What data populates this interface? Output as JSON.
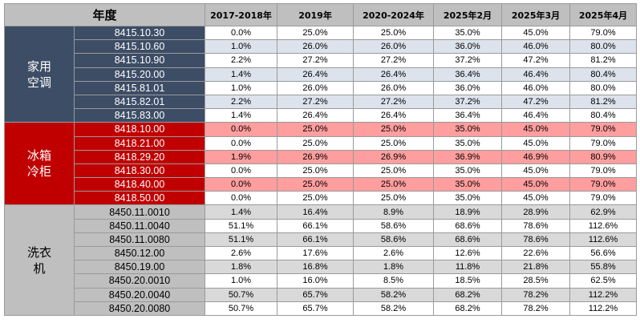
{
  "header": {
    "label": "年度",
    "columns": [
      "2017-2018年",
      "2019年",
      "2020-2024年",
      "2025年2月",
      "2025年3月",
      "2025年4月"
    ]
  },
  "groups": [
    {
      "label": "家用空调",
      "rows": [
        {
          "code": "8415.10.30",
          "values": [
            "0.0%",
            "25.0%",
            "25.0%",
            "35.0%",
            "45.0%",
            "79.0%"
          ]
        },
        {
          "code": "8415.10.60",
          "values": [
            "1.0%",
            "26.0%",
            "26.0%",
            "36.0%",
            "46.0%",
            "80.0%"
          ]
        },
        {
          "code": "8415.10.90",
          "values": [
            "2.2%",
            "27.2%",
            "27.2%",
            "37.2%",
            "47.2%",
            "81.2%"
          ]
        },
        {
          "code": "8415.20.00",
          "values": [
            "1.4%",
            "26.4%",
            "26.4%",
            "36.4%",
            "46.4%",
            "80.4%"
          ]
        },
        {
          "code": "8415.81.01",
          "values": [
            "1.0%",
            "26.0%",
            "26.0%",
            "36.0%",
            "46.0%",
            "80.0%"
          ]
        },
        {
          "code": "8415.82.01",
          "values": [
            "2.2%",
            "27.2%",
            "27.2%",
            "37.2%",
            "47.2%",
            "81.2%"
          ]
        },
        {
          "code": "8415.83.00",
          "values": [
            "1.4%",
            "26.4%",
            "26.4%",
            "36.4%",
            "46.4%",
            "80.4%"
          ]
        }
      ]
    },
    {
      "label": "冰箱冷柜",
      "rows": [
        {
          "code": "8418.10.00",
          "values": [
            "0.0%",
            "25.0%",
            "25.0%",
            "35.0%",
            "45.0%",
            "79.0%"
          ]
        },
        {
          "code": "8418.21.00",
          "values": [
            "0.0%",
            "25.0%",
            "25.0%",
            "35.0%",
            "45.0%",
            "79.0%"
          ]
        },
        {
          "code": "8418.29.20",
          "values": [
            "1.9%",
            "26.9%",
            "26.9%",
            "36.9%",
            "46.9%",
            "80.9%"
          ]
        },
        {
          "code": "8418.30.00",
          "values": [
            "0.0%",
            "25.0%",
            "25.0%",
            "35.0%",
            "45.0%",
            "79.0%"
          ]
        },
        {
          "code": "8418.40.00",
          "values": [
            "0.0%",
            "25.0%",
            "25.0%",
            "35.0%",
            "45.0%",
            "79.0%"
          ]
        },
        {
          "code": "8418.50.00",
          "values": [
            "0.0%",
            "25.0%",
            "25.0%",
            "35.0%",
            "45.0%",
            "79.0%"
          ]
        }
      ]
    },
    {
      "label": "洗衣机",
      "rows": [
        {
          "code": "8450.11.0010",
          "values": [
            "1.4%",
            "16.4%",
            "8.9%",
            "18.9%",
            "28.9%",
            "62.9%"
          ]
        },
        {
          "code": "8450.11.0040",
          "values": [
            "51.1%",
            "66.1%",
            "58.6%",
            "68.6%",
            "78.6%",
            "112.6%"
          ]
        },
        {
          "code": "8450.11.0080",
          "values": [
            "51.1%",
            "66.1%",
            "58.6%",
            "68.6%",
            "78.6%",
            "112.6%"
          ]
        },
        {
          "code": "8450.12.00",
          "values": [
            "2.6%",
            "17.6%",
            "2.6%",
            "12.6%",
            "22.6%",
            "56.6%"
          ]
        },
        {
          "code": "8450.19.00",
          "values": [
            "1.8%",
            "16.8%",
            "1.8%",
            "11.8%",
            "21.8%",
            "55.8%"
          ]
        },
        {
          "code": "8450.20.0010",
          "values": [
            "1.0%",
            "16.0%",
            "8.5%",
            "18.5%",
            "28.5%",
            "62.5%"
          ]
        },
        {
          "code": "8450.20.0040",
          "values": [
            "50.7%",
            "65.7%",
            "58.2%",
            "68.2%",
            "78.2%",
            "112.2%"
          ]
        },
        {
          "code": "8450.20.0080",
          "values": [
            "50.7%",
            "65.7%",
            "58.2%",
            "68.2%",
            "78.2%",
            "112.2%"
          ]
        }
      ]
    }
  ]
}
